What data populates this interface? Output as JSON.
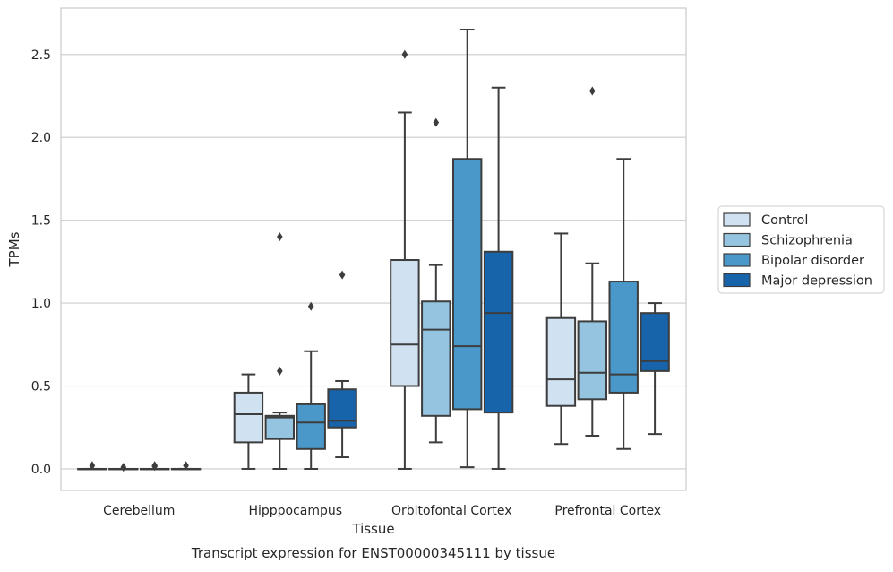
{
  "chart_data": {
    "type": "boxplot",
    "title": "Transcript expression for ENST00000345111 by tissue",
    "xlabel": "Tissue",
    "ylabel": "TPMs",
    "ylim": [
      -0.13,
      2.78
    ],
    "yticks": [
      "0.0",
      "0.5",
      "1.0",
      "1.5",
      "2.0",
      "2.5"
    ],
    "grid": "horizontal",
    "legend_position": "right",
    "categories": [
      "Cerebellum",
      "Hipppocampus",
      "Orbitofontal Cortex",
      "Prefrontal Cortex"
    ],
    "series": [
      {
        "name": "Control",
        "color": "#d0e1f2",
        "boxes": [
          {
            "whislo": 0.0,
            "q1": 0.0,
            "med": 0.0,
            "q3": 0.0,
            "whishi": 0.0,
            "fliers": [
              0.02
            ]
          },
          {
            "whislo": 0.0,
            "q1": 0.16,
            "med": 0.33,
            "q3": 0.46,
            "whishi": 0.57,
            "fliers": []
          },
          {
            "whislo": 0.0,
            "q1": 0.5,
            "med": 0.75,
            "q3": 1.26,
            "whishi": 2.15,
            "fliers": [
              2.5
            ]
          },
          {
            "whislo": 0.15,
            "q1": 0.38,
            "med": 0.54,
            "q3": 0.91,
            "whishi": 1.42,
            "fliers": []
          }
        ]
      },
      {
        "name": "Schizophrenia",
        "color": "#94c4df",
        "boxes": [
          {
            "whislo": 0.0,
            "q1": 0.0,
            "med": 0.0,
            "q3": 0.0,
            "whishi": 0.0,
            "fliers": [
              0.01
            ]
          },
          {
            "whislo": 0.0,
            "q1": 0.18,
            "med": 0.31,
            "q3": 0.32,
            "whishi": 0.34,
            "fliers": [
              1.4,
              0.59
            ]
          },
          {
            "whislo": 0.16,
            "q1": 0.32,
            "med": 0.84,
            "q3": 1.01,
            "whishi": 1.23,
            "fliers": [
              2.09
            ]
          },
          {
            "whislo": 0.2,
            "q1": 0.42,
            "med": 0.58,
            "q3": 0.89,
            "whishi": 1.24,
            "fliers": [
              2.28
            ]
          }
        ]
      },
      {
        "name": "Bipolar disorder",
        "color": "#4a98c9",
        "boxes": [
          {
            "whislo": 0.0,
            "q1": 0.0,
            "med": 0.0,
            "q3": 0.0,
            "whishi": 0.0,
            "fliers": [
              0.02,
              0.015
            ]
          },
          {
            "whislo": 0.0,
            "q1": 0.12,
            "med": 0.28,
            "q3": 0.39,
            "whishi": 0.71,
            "fliers": [
              0.98
            ]
          },
          {
            "whislo": 0.01,
            "q1": 0.36,
            "med": 0.74,
            "q3": 1.87,
            "whishi": 2.65,
            "fliers": []
          },
          {
            "whislo": 0.12,
            "q1": 0.46,
            "med": 0.57,
            "q3": 1.13,
            "whishi": 1.87,
            "fliers": []
          }
        ]
      },
      {
        "name": "Major depression",
        "color": "#1764ab",
        "boxes": [
          {
            "whislo": 0.0,
            "q1": 0.0,
            "med": 0.0,
            "q3": 0.0,
            "whishi": 0.0,
            "fliers": [
              0.02
            ]
          },
          {
            "whislo": 0.07,
            "q1": 0.25,
            "med": 0.29,
            "q3": 0.48,
            "whishi": 0.53,
            "fliers": [
              1.17
            ]
          },
          {
            "whislo": 0.0,
            "q1": 0.34,
            "med": 0.94,
            "q3": 1.31,
            "whishi": 2.3,
            "fliers": []
          },
          {
            "whislo": 0.21,
            "q1": 0.59,
            "med": 0.65,
            "q3": 0.94,
            "whishi": 1.0,
            "fliers": []
          }
        ]
      }
    ]
  }
}
